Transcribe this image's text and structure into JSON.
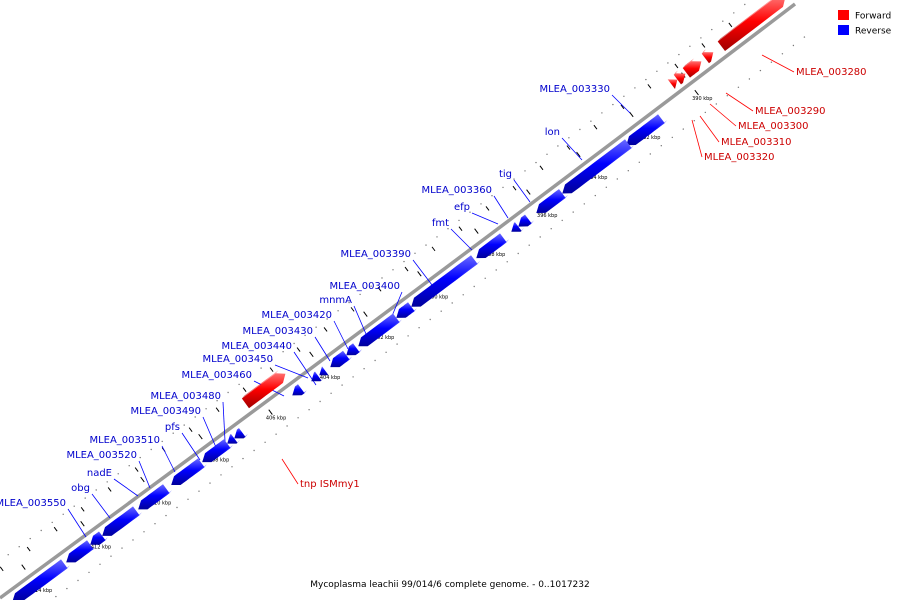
{
  "caption": "Mycoplasma leachii 99/014/6 complete genome. - 0..1017232",
  "legend": [
    {
      "label": "Forward",
      "color": "#ff0000"
    },
    {
      "label": "Reverse",
      "color": "#0000ff"
    }
  ],
  "colors": {
    "forward": "#ff0000",
    "reverse": "#0000ff",
    "backbone": "#888888"
  },
  "ticks": [
    "390 kbp",
    "392 kbp",
    "394 kbp",
    "396 kbp",
    "398 kbp",
    "400 kbp",
    "402 kbp",
    "404 kbp",
    "406 kbp",
    "408 kbp",
    "410 kbp",
    "412 kbp",
    "414 kbp"
  ],
  "forward_genes": [
    {
      "label": "MLEA_003280"
    },
    {
      "label": "MLEA_003290"
    },
    {
      "label": "MLEA_003300"
    },
    {
      "label": "MLEA_003310"
    },
    {
      "label": "MLEA_003320"
    },
    {
      "label": "tnp ISMmy1"
    }
  ],
  "reverse_genes": [
    {
      "label": "MLEA_003330"
    },
    {
      "label": "lon"
    },
    {
      "label": "tig"
    },
    {
      "label": "MLEA_003360"
    },
    {
      "label": "efp"
    },
    {
      "label": "fmt"
    },
    {
      "label": "MLEA_003390"
    },
    {
      "label": "MLEA_003400"
    },
    {
      "label": "mnmA"
    },
    {
      "label": "MLEA_003420"
    },
    {
      "label": "MLEA_003430"
    },
    {
      "label": "MLEA_003440"
    },
    {
      "label": "MLEA_003450"
    },
    {
      "label": "MLEA_003460"
    },
    {
      "label": "MLEA_003480"
    },
    {
      "label": "MLEA_003490"
    },
    {
      "label": "pfs"
    },
    {
      "label": "MLEA_003510"
    },
    {
      "label": "MLEA_003520"
    },
    {
      "label": "nadE"
    },
    {
      "label": "obg"
    },
    {
      "label": "MLEA_003550"
    }
  ]
}
